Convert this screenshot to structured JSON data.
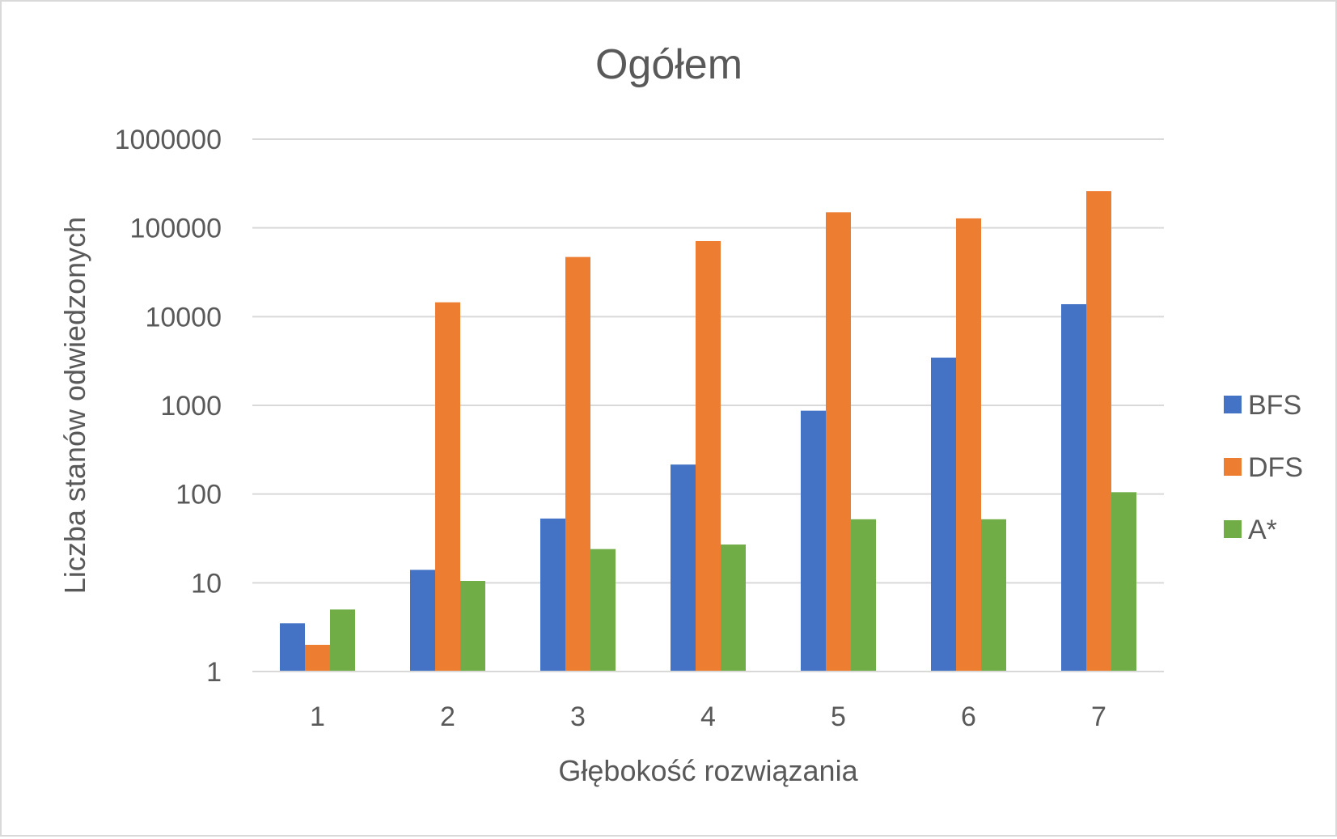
{
  "chart_data": {
    "type": "bar",
    "title": "Ogółem",
    "xlabel": "Głębokość rozwiązania",
    "ylabel": "Liczba stanów odwiedzonych",
    "yscale": "log",
    "ylim": [
      1,
      1000000
    ],
    "yticks": [
      "1",
      "10",
      "100",
      "1000",
      "10000",
      "100000",
      "1000000"
    ],
    "categories": [
      "1",
      "2",
      "3",
      "4",
      "5",
      "6",
      "7"
    ],
    "series": [
      {
        "name": "BFS",
        "color": "#4472c4",
        "values": [
          3.5,
          14,
          53,
          215,
          870,
          3450,
          13800
        ]
      },
      {
        "name": "DFS",
        "color": "#ed7d31",
        "values": [
          2,
          14500,
          47000,
          71000,
          150000,
          128000,
          260000
        ]
      },
      {
        "name": "A*",
        "color": "#70ad47",
        "values": [
          5,
          10.5,
          24,
          27,
          52,
          52,
          105
        ]
      }
    ],
    "grid": true,
    "legend_position": "right"
  }
}
